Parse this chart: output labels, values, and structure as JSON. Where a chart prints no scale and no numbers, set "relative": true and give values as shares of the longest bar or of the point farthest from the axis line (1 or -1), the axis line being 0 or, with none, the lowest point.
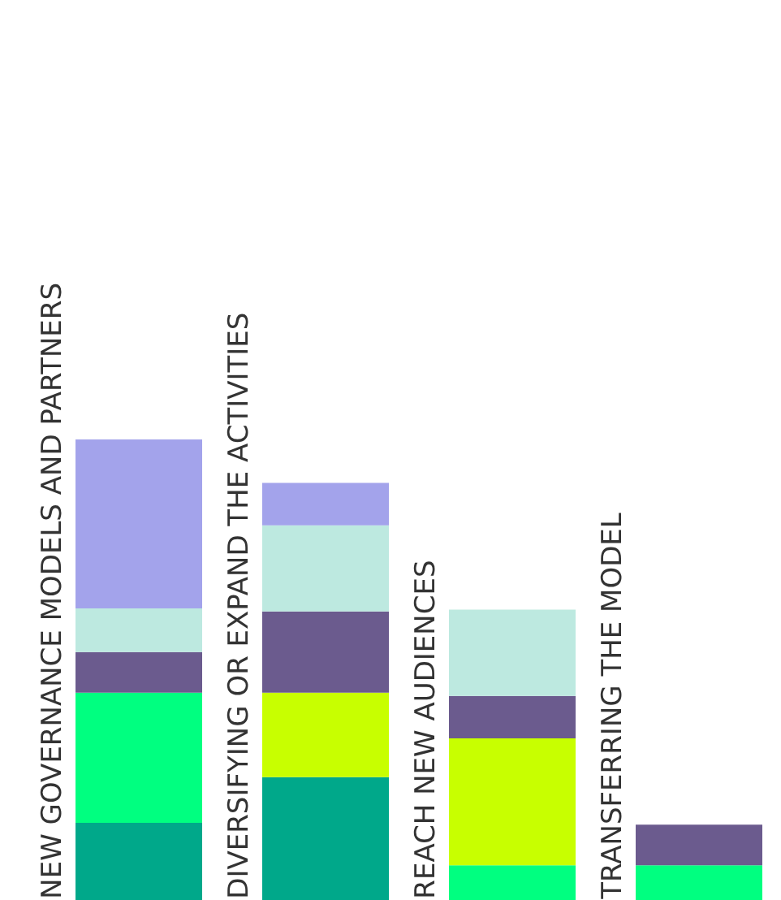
{
  "chart_data": {
    "type": "bar",
    "stacked": true,
    "relative": true,
    "categories": [
      "NEW GOVERNANCE MODELS AND  PARTNERS",
      "DIVERSIFYING OR EXPAND THE ACTIVITIES",
      "REACH NEW AUDIENCES",
      "TRANSFERRING THE MODEL"
    ],
    "series": [
      {
        "color": "#00a88a",
        "values": [
          0.169,
          0.268,
          null,
          null
        ]
      },
      {
        "color": "#00ff80",
        "values": [
          0.282,
          null,
          0.077,
          0.077
        ]
      },
      {
        "color": "#c8ff00",
        "values": [
          null,
          0.183,
          0.275,
          null
        ]
      },
      {
        "color": "#6b5b8e",
        "values": [
          0.088,
          0.176,
          0.092,
          0.088
        ]
      },
      {
        "color": "#bde9e0",
        "values": [
          0.095,
          0.187,
          0.187,
          null
        ]
      },
      {
        "color": "#a3a3eb",
        "values": [
          0.366,
          0.092,
          null,
          null
        ]
      }
    ]
  }
}
